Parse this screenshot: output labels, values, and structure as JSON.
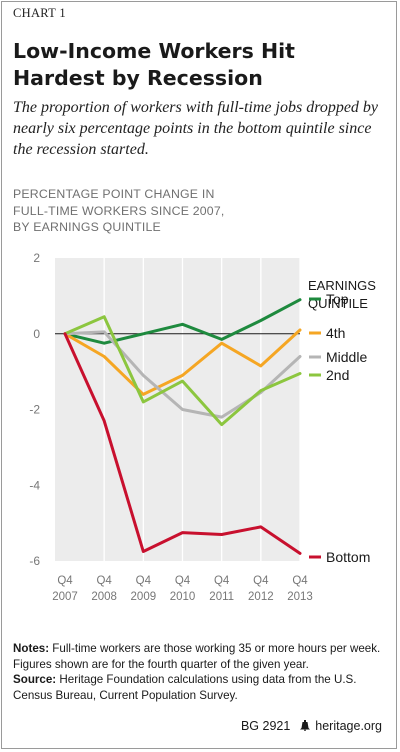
{
  "chart_label": "CHART 1",
  "title": "Low-Income Workers Hit Hardest by Recession",
  "subtitle": "The proportion of workers with full-time jobs dropped by nearly six percentage points in the bottom quintile since the recession started.",
  "ylabel_lines": [
    "PERCENTAGE POINT CHANGE IN",
    "FULL-TIME WORKERS SINCE 2007,",
    "BY EARNINGS QUINTILE"
  ],
  "notes": {
    "notes_label": "Notes:",
    "notes_text": " Full-time workers are those working 35 or more hours per week. Figures shown are for the fourth quarter of the given year.",
    "source_label": "Source:",
    "source_text": " Heritage Foundation calculations using data from the U.S. Census Bureau, Current Population Survey."
  },
  "footer": {
    "code": "BG 2921",
    "site": "heritage.org",
    "bell_icon": "liberty-bell-icon"
  },
  "chart_data": {
    "type": "line",
    "title": "Low-Income Workers Hit Hardest by Recession",
    "ylabel": "PERCENTAGE POINT CHANGE IN FULL-TIME WORKERS SINCE 2007, BY EARNINGS QUINTILE",
    "xlabel": "",
    "x": [
      "Q4 2007",
      "Q4 2008",
      "Q4 2009",
      "Q4 2010",
      "Q4 2011",
      "Q4 2012",
      "Q4 2013"
    ],
    "x_tick_lines": [
      [
        "Q4",
        "2007"
      ],
      [
        "Q4",
        "2008"
      ],
      [
        "Q4",
        "2009"
      ],
      [
        "Q4",
        "2010"
      ],
      [
        "Q4",
        "2011"
      ],
      [
        "Q4",
        "2012"
      ],
      [
        "Q4",
        "2013"
      ]
    ],
    "ylim": [
      -6,
      2
    ],
    "yticks": [
      2,
      0,
      -2,
      -4,
      -6
    ],
    "grid": "vertical",
    "legend_title_lines": [
      "EARNINGS",
      "QUINTILE"
    ],
    "legend_placement": "right",
    "series": [
      {
        "name": "Top",
        "color": "#1e8a3e",
        "values": [
          0,
          -0.25,
          0.0,
          0.25,
          -0.15,
          0.35,
          0.9
        ]
      },
      {
        "name": "4th",
        "color": "#f5a623",
        "values": [
          0,
          -0.6,
          -1.6,
          -1.1,
          -0.25,
          -0.85,
          0.1
        ]
      },
      {
        "name": "Middle",
        "color": "#b5b5b5",
        "values": [
          0,
          0.05,
          -1.1,
          -2.0,
          -2.2,
          -1.55,
          -0.6
        ]
      },
      {
        "name": "2nd",
        "color": "#8cc63f",
        "values": [
          0,
          0.45,
          -1.8,
          -1.25,
          -2.4,
          -1.5,
          -1.05
        ]
      },
      {
        "name": "Bottom",
        "color": "#c8102e",
        "values": [
          0,
          -2.3,
          -5.75,
          -5.25,
          -5.3,
          -5.1,
          -5.8
        ]
      }
    ]
  }
}
